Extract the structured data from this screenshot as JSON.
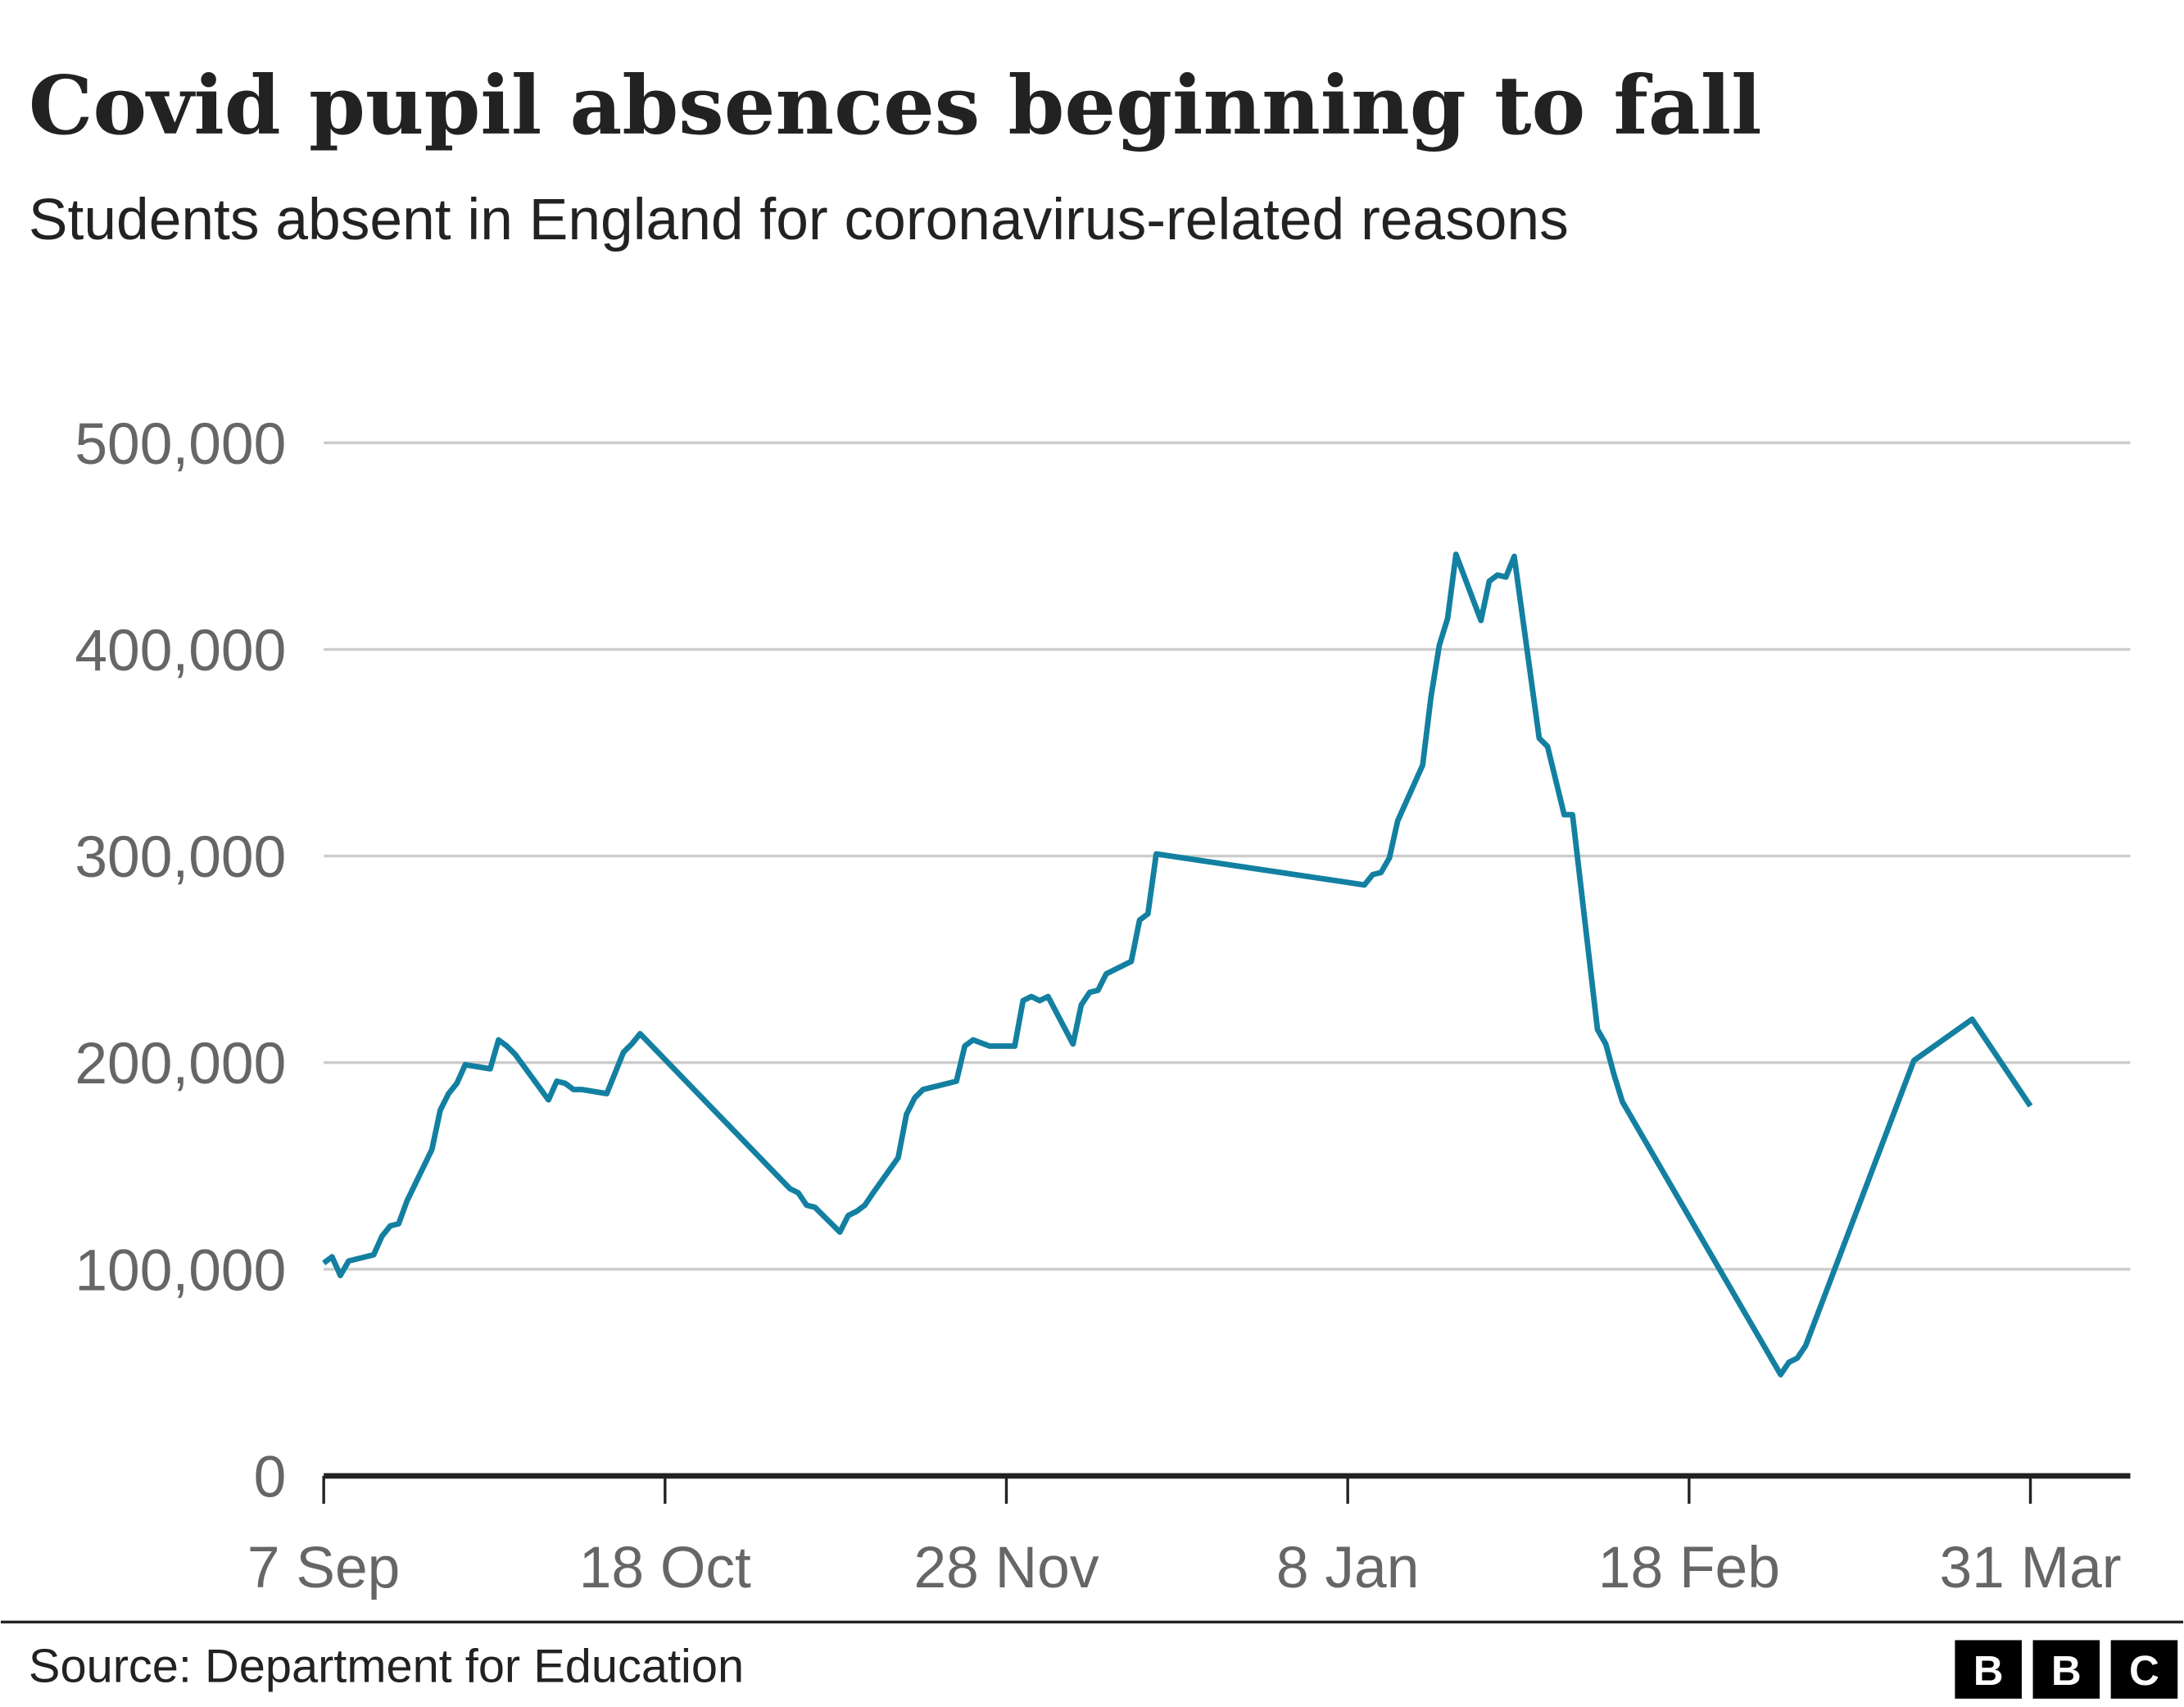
{
  "chart_data": {
    "type": "line",
    "title": "Covid pupil absences beginning to fall",
    "subtitle": "Students absent in England for coronavirus-related reasons",
    "source": "Source: Department for Education",
    "logo": [
      "B",
      "B",
      "C"
    ],
    "x": [
      0,
      1,
      2,
      3,
      6,
      7,
      8,
      9,
      10,
      13,
      14,
      15,
      16,
      17,
      20,
      21,
      22,
      23,
      27,
      28,
      29,
      30,
      31,
      34,
      35,
      36,
      37,
      38,
      56,
      57,
      58,
      59,
      62,
      63,
      64,
      65,
      66,
      69,
      70,
      71,
      72,
      76,
      77,
      78,
      80,
      83,
      84,
      85,
      86,
      87,
      90,
      91,
      92,
      93,
      94,
      97,
      98,
      99,
      100,
      125,
      126,
      127,
      128,
      129,
      132,
      133,
      134,
      135,
      136,
      139,
      140,
      141,
      142,
      143,
      146,
      147,
      149,
      150,
      153,
      154,
      155,
      156,
      175,
      176,
      177,
      178,
      191,
      198,
      205
    ],
    "series": [
      {
        "name": "Students absent",
        "color": "#1380a1",
        "values": [
          103000,
          106000,
          97000,
          104000,
          107000,
          116000,
          121000,
          122000,
          133000,
          158000,
          177000,
          185000,
          190000,
          199000,
          197000,
          211000,
          208000,
          204000,
          182000,
          191000,
          190000,
          187000,
          187000,
          185000,
          195000,
          205000,
          209000,
          214000,
          139000,
          137000,
          131000,
          130000,
          118000,
          126000,
          128000,
          131000,
          137000,
          154000,
          175000,
          183000,
          187000,
          191000,
          208000,
          211000,
          208000,
          208000,
          230000,
          232000,
          230000,
          232000,
          209000,
          228000,
          234000,
          235000,
          243000,
          249000,
          269000,
          272000,
          301000,
          286000,
          291000,
          292000,
          299000,
          317000,
          344000,
          377000,
          402000,
          415000,
          446000,
          414000,
          433000,
          436000,
          435000,
          445000,
          357000,
          353000,
          320000,
          320000,
          216000,
          209000,
          194000,
          181000,
          49000,
          55000,
          57000,
          63000,
          201000,
          221000,
          179000
        ]
      }
    ],
    "xlim": [
      0,
      217
    ],
    "xticks": [
      {
        "value": 0,
        "label": "7 Sep"
      },
      {
        "value": 41,
        "label": "18 Oct"
      },
      {
        "value": 82,
        "label": "28 Nov"
      },
      {
        "value": 123,
        "label": "8 Jan"
      },
      {
        "value": 164,
        "label": "18 Feb"
      },
      {
        "value": 205,
        "label": "31 Mar"
      }
    ],
    "ylim": [
      0,
      500000
    ],
    "yticks": [
      0,
      {
        "value": 100000,
        "label": "100,000"
      },
      {
        "value": 200000,
        "label": "200,000"
      },
      {
        "value": 300000,
        "label": "300,000"
      },
      {
        "value": 400000,
        "label": "400,000"
      },
      {
        "value": 500000,
        "label": "500,000"
      }
    ],
    "grid": true
  }
}
